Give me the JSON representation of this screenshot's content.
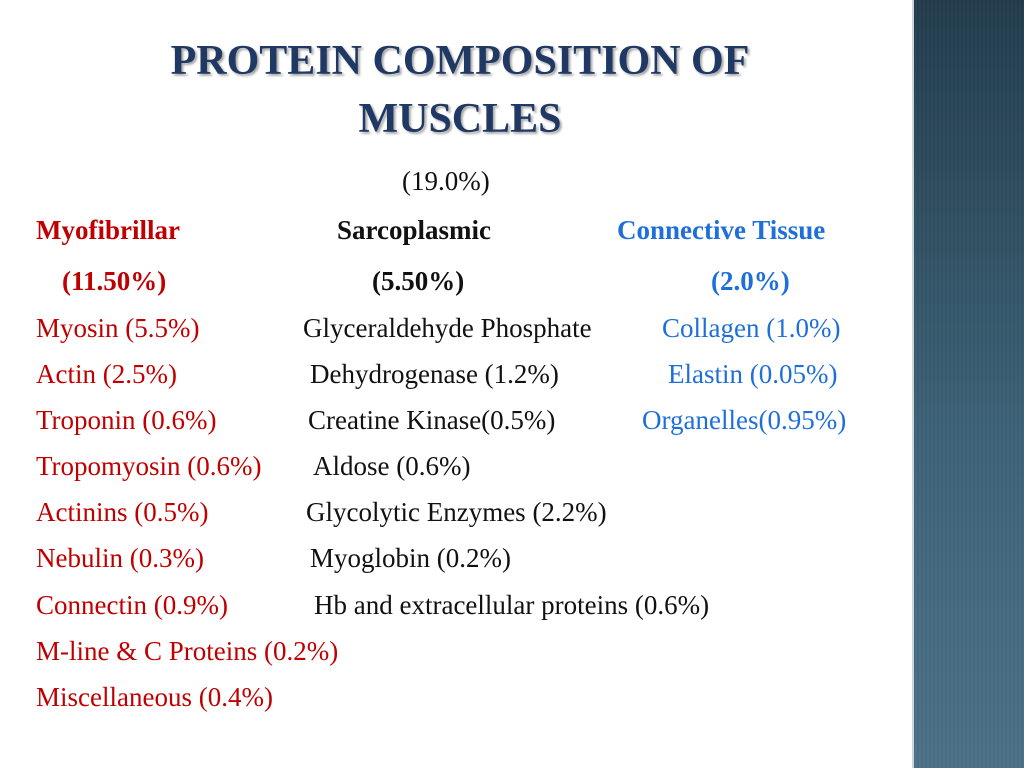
{
  "title": {
    "line1": "PROTEIN COMPOSITION OF",
    "line2": "MUSCLES"
  },
  "total": "(19.0%)",
  "categories": [
    {
      "name": "Myofibrillar",
      "percent": "(11.50%)",
      "color": "#c00000",
      "items": [
        "Myosin (5.5%)",
        "Actin (2.5%)",
        "Troponin (0.6%)",
        "Tropomyosin (0.6%)",
        "Actinins (0.5%)",
        "Nebulin (0.3%)",
        "Connectin (0.9%)",
        "M-line & C Proteins (0.2%)",
        "Miscellaneous (0.4%)"
      ]
    },
    {
      "name": "Sarcoplasmic",
      "percent": "(5.50%)",
      "color": "#111111",
      "items": [
        "Glyceraldehyde Phosphate",
        "Dehydrogenase (1.2%)",
        "Creatine Kinase(0.5%)",
        "Aldose (0.6%)",
        "Glycolytic Enzymes (2.2%)",
        "Myoglobin (0.2%)",
        "Hb and extracellular proteins (0.6%)"
      ]
    },
    {
      "name": "Connective Tissue",
      "percent": "(2.0%)",
      "color": "#1f6fd8",
      "items": [
        "Collagen (1.0%)",
        "Elastin (0.05%)",
        "Organelles(0.95%)"
      ]
    }
  ],
  "accent_colors": {
    "title": "#1f3864",
    "side_bar": "#2a4a5c"
  }
}
